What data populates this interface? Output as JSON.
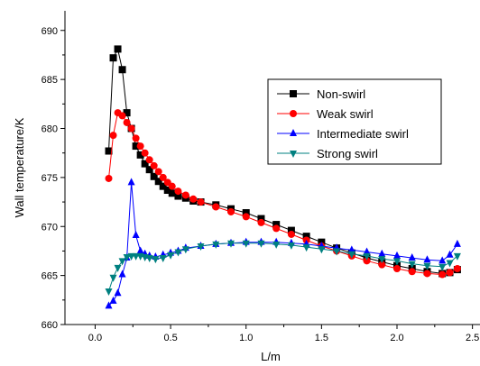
{
  "chart_data": {
    "type": "line",
    "xlabel": "L/m",
    "ylabel": "Wall temperature/K",
    "xlim": [
      -0.2,
      2.55
    ],
    "ylim": [
      660,
      692
    ],
    "x_ticks": [
      "0.0",
      "0.5",
      "1.0",
      "1.5",
      "2.0",
      "2.5"
    ],
    "x_tick_values": [
      0,
      0.5,
      1.0,
      1.5,
      2.0,
      2.5
    ],
    "y_ticks": [
      "660",
      "665",
      "670",
      "675",
      "680",
      "685",
      "690"
    ],
    "y_tick_values": [
      660,
      665,
      670,
      675,
      680,
      685,
      690
    ],
    "grid": false,
    "legend_position": "right",
    "series": [
      {
        "name": "Non-swirl",
        "color": "#000000",
        "marker": "square",
        "x": [
          0.09,
          0.12,
          0.15,
          0.18,
          0.21,
          0.24,
          0.27,
          0.3,
          0.33,
          0.36,
          0.39,
          0.42,
          0.45,
          0.48,
          0.51,
          0.55,
          0.6,
          0.65,
          0.7,
          0.8,
          0.9,
          1.0,
          1.1,
          1.2,
          1.3,
          1.4,
          1.5,
          1.6,
          1.7,
          1.8,
          1.9,
          2.0,
          2.1,
          2.2,
          2.3,
          2.35,
          2.4
        ],
        "y": [
          677.7,
          687.2,
          688.1,
          686.0,
          681.6,
          680.0,
          678.2,
          677.3,
          676.4,
          675.8,
          675.1,
          674.6,
          674.1,
          673.7,
          673.4,
          673.1,
          672.9,
          672.6,
          672.5,
          672.2,
          671.8,
          671.4,
          670.8,
          670.2,
          669.6,
          669.0,
          668.4,
          667.8,
          667.3,
          666.8,
          666.4,
          666.0,
          665.7,
          665.4,
          665.2,
          665.3,
          665.6
        ]
      },
      {
        "name": "Weak swirl",
        "color": "#ff0000",
        "marker": "circle",
        "x": [
          0.09,
          0.12,
          0.15,
          0.18,
          0.21,
          0.24,
          0.27,
          0.3,
          0.33,
          0.36,
          0.39,
          0.42,
          0.45,
          0.48,
          0.51,
          0.55,
          0.6,
          0.65,
          0.7,
          0.8,
          0.9,
          1.0,
          1.1,
          1.2,
          1.3,
          1.4,
          1.5,
          1.6,
          1.7,
          1.8,
          1.9,
          2.0,
          2.1,
          2.2,
          2.3,
          2.35,
          2.4
        ],
        "y": [
          674.9,
          679.3,
          681.6,
          681.3,
          680.6,
          680.0,
          679.0,
          678.2,
          677.5,
          676.8,
          676.2,
          675.6,
          675.0,
          674.5,
          674.1,
          673.6,
          673.2,
          672.8,
          672.5,
          672.0,
          671.5,
          671.0,
          670.4,
          669.8,
          669.2,
          668.6,
          668.0,
          667.5,
          667.0,
          666.5,
          666.1,
          665.7,
          665.4,
          665.2,
          665.1,
          665.3,
          665.7
        ]
      },
      {
        "name": "Intermediate swirl",
        "color": "#0000ff",
        "marker": "triangle-up",
        "x": [
          0.09,
          0.12,
          0.15,
          0.18,
          0.21,
          0.24,
          0.27,
          0.3,
          0.33,
          0.36,
          0.4,
          0.45,
          0.5,
          0.55,
          0.6,
          0.7,
          0.8,
          0.9,
          1.0,
          1.1,
          1.2,
          1.3,
          1.4,
          1.5,
          1.6,
          1.7,
          1.8,
          1.9,
          2.0,
          2.1,
          2.2,
          2.3,
          2.35,
          2.4
        ],
        "y": [
          661.9,
          662.4,
          663.2,
          665.1,
          666.8,
          674.5,
          669.1,
          667.5,
          667.2,
          667.0,
          666.9,
          667.1,
          667.3,
          667.5,
          667.8,
          668.0,
          668.2,
          668.3,
          668.4,
          668.4,
          668.4,
          668.3,
          668.2,
          668.0,
          667.8,
          667.6,
          667.4,
          667.2,
          667.0,
          666.8,
          666.6,
          666.5,
          667.1,
          668.2
        ]
      },
      {
        "name": "Strong swirl",
        "color": "#008080",
        "marker": "triangle-down",
        "x": [
          0.09,
          0.12,
          0.15,
          0.18,
          0.21,
          0.24,
          0.27,
          0.3,
          0.33,
          0.36,
          0.4,
          0.45,
          0.5,
          0.55,
          0.6,
          0.7,
          0.8,
          0.9,
          1.0,
          1.1,
          1.2,
          1.3,
          1.4,
          1.5,
          1.6,
          1.7,
          1.8,
          1.9,
          2.0,
          2.1,
          2.2,
          2.3,
          2.35,
          2.4
        ],
        "y": [
          663.4,
          664.8,
          665.8,
          666.5,
          666.9,
          667.0,
          667.0,
          667.0,
          666.9,
          666.8,
          666.7,
          666.8,
          667.1,
          667.4,
          667.7,
          668.0,
          668.2,
          668.3,
          668.3,
          668.3,
          668.2,
          668.1,
          667.9,
          667.7,
          667.5,
          667.2,
          667.0,
          666.7,
          666.5,
          666.2,
          666.0,
          665.9,
          666.3,
          667.0
        ]
      }
    ]
  }
}
